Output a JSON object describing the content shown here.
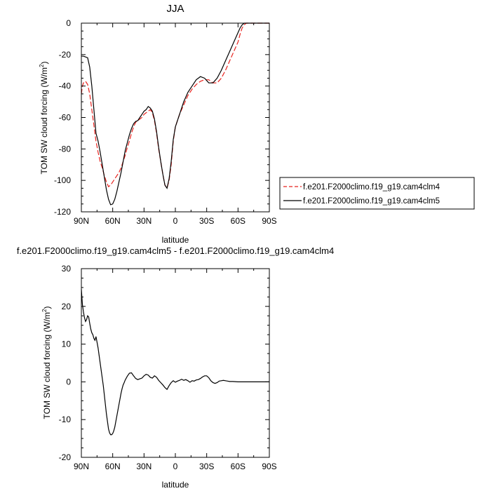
{
  "chart_data": [
    {
      "type": "line",
      "title": "JJA",
      "xlabel": "latitude",
      "ylabel": "TOM SW cloud forcing (W/m",
      "ylabel_sup": "2",
      "ylabel_close": ")",
      "xlim": [
        90,
        -90
      ],
      "ylim": [
        -120,
        0
      ],
      "x_ticks": [
        90,
        60,
        30,
        0,
        -30,
        -60,
        -90
      ],
      "x_tick_labels": [
        "90N",
        "60N",
        "30N",
        "0",
        "30S",
        "60S",
        "90S"
      ],
      "y_ticks": [
        0,
        -20,
        -40,
        -60,
        -80,
        -100,
        -120
      ],
      "y_tick_labels": [
        "0",
        "-20",
        "-40",
        "-60",
        "-80",
        "-100",
        "-120"
      ],
      "legend_position": "right",
      "series": [
        {
          "name": "f.e201.F2000climo.f19_g19.cam4clm4",
          "color": "#e8231e",
          "dash": "dashed",
          "x": [
            90,
            89,
            88,
            86,
            84,
            82,
            80,
            78,
            76,
            74,
            72,
            70,
            68,
            66,
            64,
            62,
            60,
            58,
            56,
            54,
            52,
            50,
            48,
            46,
            44,
            42,
            40,
            38,
            36,
            34,
            32,
            30,
            28,
            26,
            24,
            22,
            20,
            18,
            16,
            14,
            12,
            10,
            8,
            6,
            4,
            2,
            0,
            -2,
            -4,
            -8,
            -12,
            -16,
            -20,
            -24,
            -28,
            -32,
            -36,
            -40,
            -44,
            -48,
            -52,
            -56,
            -60,
            -62,
            -64,
            -66,
            -68,
            -70,
            -75,
            -80,
            -85,
            -90
          ],
          "y": [
            -45,
            -40,
            -38,
            -37,
            -39,
            -45,
            -55,
            -65,
            -75,
            -82,
            -88,
            -92,
            -97,
            -101,
            -104,
            -103,
            -101,
            -99,
            -97,
            -95,
            -92,
            -88,
            -84,
            -79,
            -75,
            -70,
            -66,
            -63,
            -62,
            -61,
            -60,
            -58,
            -57,
            -56,
            -55,
            -57,
            -62,
            -70,
            -80,
            -88,
            -96,
            -103,
            -105,
            -100,
            -90,
            -75,
            -66,
            -62,
            -58,
            -52,
            -46,
            -42,
            -39,
            -37,
            -36,
            -36,
            -38,
            -38,
            -35,
            -30,
            -24,
            -18,
            -12,
            -7,
            -3,
            -1,
            0,
            0,
            0,
            0,
            0,
            0
          ]
        },
        {
          "name": "f.e201.F2000climo.f19_g19.cam4clm5",
          "color": "#000000",
          "dash": "solid",
          "x": [
            90,
            88,
            86,
            84,
            82,
            80,
            78,
            76,
            74,
            72,
            70,
            68,
            66,
            64,
            62,
            60,
            58,
            56,
            54,
            52,
            50,
            48,
            46,
            44,
            42,
            40,
            38,
            36,
            34,
            32,
            30,
            28,
            26,
            24,
            22,
            20,
            18,
            16,
            14,
            12,
            10,
            8,
            6,
            4,
            2,
            0,
            -2,
            -4,
            -8,
            -12,
            -16,
            -20,
            -24,
            -28,
            -32,
            -36,
            -40,
            -44,
            -48,
            -52,
            -56,
            -60,
            -62,
            -64,
            -66,
            -68,
            -70,
            -75,
            -80,
            -85,
            -90
          ],
          "y": [
            -21,
            -21,
            -21.5,
            -22,
            -28,
            -40,
            -55,
            -70,
            -75,
            -82,
            -90,
            -98,
            -106,
            -112,
            -115.5,
            -115,
            -112,
            -107,
            -101,
            -95,
            -88,
            -81,
            -76,
            -71,
            -67,
            -64,
            -62.5,
            -62,
            -60,
            -58,
            -56,
            -55,
            -53,
            -54,
            -56,
            -61,
            -69,
            -79,
            -88,
            -96,
            -103,
            -105,
            -99,
            -88,
            -74,
            -66,
            -62,
            -58,
            -50,
            -44,
            -40,
            -36,
            -34,
            -35,
            -38,
            -38,
            -35,
            -30,
            -24,
            -18,
            -12,
            -6,
            -3,
            -1,
            0,
            0,
            0,
            0,
            0,
            0,
            0
          ]
        }
      ]
    },
    {
      "type": "line",
      "title": "f.e201.F2000climo.f19_g19.cam4clm5 - f.e201.F2000climo.f19_g19.cam4clm4",
      "xlabel": "latitude",
      "ylabel": "TOM SW cloud forcing (W/m",
      "ylabel_sup": "2",
      "ylabel_close": ")",
      "xlim": [
        90,
        -90
      ],
      "ylim": [
        -20,
        30
      ],
      "x_ticks": [
        90,
        60,
        30,
        0,
        -30,
        -60,
        -90
      ],
      "x_tick_labels": [
        "90N",
        "60N",
        "30N",
        "0",
        "30S",
        "60S",
        "90S"
      ],
      "y_ticks": [
        30,
        20,
        10,
        0,
        -10,
        -20
      ],
      "y_tick_labels": [
        "30",
        "20",
        "10",
        "0",
        "-10",
        "-20"
      ],
      "series": [
        {
          "color": "#000000",
          "dash": "solid",
          "x": [
            90,
            89,
            88,
            87,
            86,
            85,
            84,
            83,
            82,
            81,
            80,
            79,
            78,
            77,
            76,
            75,
            74,
            73,
            72,
            71,
            70,
            69,
            68,
            67,
            66,
            65,
            64,
            63,
            62,
            61,
            60,
            59,
            58,
            57,
            56,
            55,
            54,
            53,
            52,
            51,
            50,
            49,
            48,
            46,
            44,
            42,
            40,
            38,
            36,
            34,
            32,
            30,
            28,
            26,
            24,
            22,
            20,
            18,
            16,
            14,
            12,
            10,
            8,
            6,
            4,
            2,
            0,
            -2,
            -4,
            -6,
            -8,
            -10,
            -12,
            -14,
            -16,
            -18,
            -20,
            -22,
            -24,
            -26,
            -28,
            -30,
            -32,
            -34,
            -36,
            -38,
            -40,
            -42,
            -44,
            -46,
            -48,
            -50,
            -52,
            -55,
            -60,
            -65,
            -70,
            -75,
            -80,
            -85,
            -90
          ],
          "y": [
            24.5,
            20.5,
            18.5,
            17,
            16,
            16.5,
            17.5,
            17.2,
            15.5,
            14,
            13,
            12.5,
            11.5,
            11,
            12,
            10.5,
            9,
            7,
            5,
            3,
            1,
            -1,
            -3.5,
            -6,
            -8.5,
            -10.5,
            -12.5,
            -13.5,
            -14,
            -14,
            -13.7,
            -13,
            -12,
            -10.5,
            -9,
            -7.5,
            -6,
            -4.5,
            -3,
            -1.8,
            -0.8,
            -0.2,
            0.5,
            1.5,
            2.3,
            2.4,
            1.6,
            0.9,
            0.6,
            0.8,
            1.0,
            1.6,
            2.0,
            1.8,
            1.2,
            1.0,
            1.6,
            1.2,
            0.4,
            -0.2,
            -0.8,
            -1.5,
            -2.0,
            -1.0,
            -0.2,
            0.3,
            -0.1,
            0.2,
            0.4,
            0.7,
            0.4,
            0.6,
            0.3,
            -0.1,
            0.3,
            0.2,
            0.5,
            0.6,
            0.9,
            1.3,
            1.6,
            1.6,
            1.1,
            0.3,
            -0.2,
            -0.4,
            -0.2,
            0.2,
            0.3,
            0.4,
            0.3,
            0.2,
            0.1,
            0.1,
            0.0,
            0.0,
            0.0,
            0.0,
            0.0,
            0.0,
            0.0
          ]
        }
      ]
    }
  ]
}
